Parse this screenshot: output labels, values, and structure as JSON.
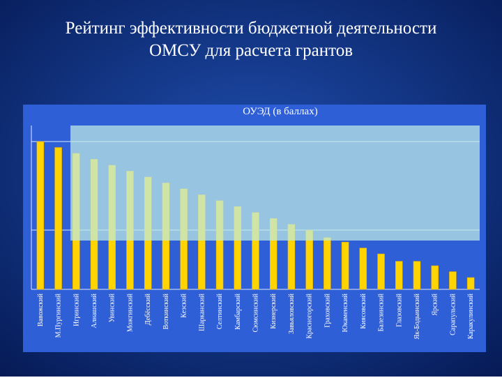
{
  "title": "Рейтинг эффективности бюджетной деятельности ОМСУ для расчета грантов",
  "chart_data": {
    "type": "bar",
    "title": "ОУЭД (в баллах)",
    "categories": [
      "Вавожский",
      "М.Пургинский",
      "Игринский",
      "Алнашский",
      "Увинский",
      "Можгинский",
      "Дебёсский",
      "Воткинский",
      "Кезский",
      "Шарканский",
      "Селтинский",
      "Камбарский",
      "Сюмсинский",
      "Кизнерский",
      "Завьяловский",
      "Красногорский",
      "Граховский",
      "Юкаменский",
      "Киясовский",
      "Балезинский",
      "Глазовский",
      "Як-Бодьинский",
      "Ярский",
      "Сарапульский",
      "Каракулинский"
    ],
    "values": [
      100,
      96,
      92,
      88,
      84,
      80,
      76,
      72,
      68,
      64,
      60,
      56,
      52,
      48,
      44,
      40,
      35,
      32,
      28,
      24,
      19,
      19,
      16,
      12,
      8
    ],
    "color": "#ffd400",
    "ylim": [
      0,
      100
    ]
  }
}
